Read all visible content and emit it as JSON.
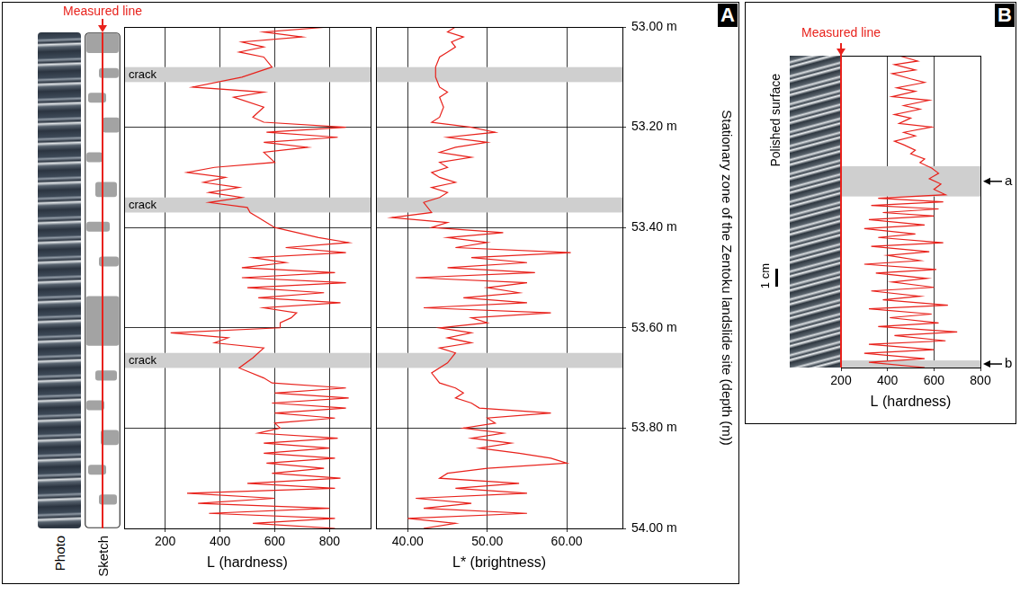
{
  "chart_data": [
    {
      "type": "line",
      "x_label": "L (hardness)",
      "xlim": [
        50,
        950
      ],
      "xticks": [
        200,
        400,
        600,
        800
      ],
      "ylim": [
        54,
        53
      ],
      "yticks": [
        53,
        53.2,
        53.4,
        53.6,
        53.8,
        54
      ],
      "grid": true,
      "tick_labels": "x",
      "series": [
        {
          "color": "#e8221c",
          "x": [
            800,
            560,
            700,
            480,
            560,
            470,
            560,
            590,
            480,
            300,
            560,
            450,
            560,
            520,
            560,
            860,
            570,
            830,
            560,
            720,
            560,
            600,
            380,
            280,
            420,
            340,
            470,
            360,
            480,
            360,
            500,
            510,
            540,
            600,
            760,
            870,
            640,
            860,
            520,
            640,
            480,
            820,
            480,
            860,
            500,
            780,
            540,
            840,
            560,
            680,
            660,
            620,
            620,
            220,
            430,
            380,
            560,
            520,
            470,
            560,
            590,
            860,
            600,
            870,
            590,
            860,
            600,
            820,
            600,
            620,
            540,
            830,
            560,
            800,
            560,
            820,
            570,
            780,
            590,
            840,
            500,
            820,
            280,
            600,
            320,
            800,
            360,
            820,
            520,
            820
          ],
          "y": [
            53.0,
            53.01,
            53.02,
            53.03,
            53.04,
            53.05,
            53.06,
            53.08,
            53.1,
            53.12,
            53.13,
            53.14,
            53.16,
            53.18,
            53.19,
            53.2,
            53.21,
            53.22,
            53.23,
            53.24,
            53.25,
            53.27,
            53.28,
            53.29,
            53.3,
            53.31,
            53.32,
            53.33,
            53.34,
            53.35,
            53.36,
            53.37,
            53.38,
            53.4,
            53.42,
            53.43,
            53.44,
            53.45,
            53.46,
            53.47,
            53.48,
            53.49,
            53.5,
            53.51,
            53.52,
            53.53,
            53.54,
            53.55,
            53.56,
            53.57,
            53.58,
            53.59,
            53.6,
            53.61,
            53.62,
            53.63,
            53.64,
            53.66,
            53.68,
            53.7,
            53.71,
            53.72,
            53.73,
            53.74,
            53.75,
            53.76,
            53.77,
            53.78,
            53.79,
            53.8,
            53.81,
            53.82,
            53.83,
            53.84,
            53.85,
            53.86,
            53.87,
            53.88,
            53.89,
            53.9,
            53.91,
            53.92,
            53.93,
            53.94,
            53.95,
            53.96,
            53.97,
            53.98,
            53.99,
            54.0
          ]
        }
      ],
      "bands": [
        {
          "from": 53.08,
          "to": 53.11,
          "label": "crack"
        },
        {
          "from": 53.34,
          "to": 53.37,
          "label": "crack"
        },
        {
          "from": 53.65,
          "to": 53.68,
          "label": "crack"
        }
      ]
    },
    {
      "type": "line",
      "x_label": "L* (brightness)",
      "xlim": [
        36,
        67
      ],
      "xticks": [
        {
          "value": 40,
          "label": "40.00"
        },
        {
          "value": 50,
          "label": "50.00"
        },
        {
          "value": 60,
          "label": "60.00"
        }
      ],
      "ylim": [
        54,
        53
      ],
      "yticks": [
        {
          "value": 53,
          "label": "53.00 m"
        },
        {
          "value": 53.2,
          "label": "53.20 m"
        },
        {
          "value": 53.4,
          "label": "53.40 m"
        },
        {
          "value": 53.6,
          "label": "53.60 m"
        },
        {
          "value": 53.8,
          "label": "53.80 m"
        },
        {
          "value": 54,
          "label": "54.00 m"
        }
      ],
      "y_label": "Stationary zone of the Zentoku landslide site (depth (m))",
      "grid": true,
      "series": [
        {
          "color": "#e8221c",
          "x": [
            46,
            45,
            47,
            45.5,
            46,
            45,
            44,
            43.5,
            43.5,
            44,
            45,
            44,
            44.5,
            44,
            43,
            48,
            51,
            45,
            50,
            46,
            44,
            48,
            44,
            45,
            43,
            44,
            46,
            43,
            45,
            44,
            42,
            43,
            38,
            45,
            43,
            52,
            45,
            50,
            46,
            60.5,
            48,
            55,
            45,
            56,
            41,
            55,
            50,
            54,
            47,
            55,
            42,
            58,
            48,
            50,
            44,
            48,
            45,
            48,
            44,
            46,
            45,
            43,
            44,
            46,
            47,
            46,
            48,
            49,
            58,
            50,
            51,
            47,
            52,
            48,
            53,
            49,
            54,
            58,
            60,
            50,
            45,
            44,
            54,
            46,
            55,
            41,
            48,
            42,
            55,
            40,
            46,
            42
          ],
          "y": [
            53.0,
            53.01,
            53.02,
            53.03,
            53.04,
            53.05,
            53.06,
            53.08,
            53.1,
            53.12,
            53.13,
            53.14,
            53.16,
            53.18,
            53.19,
            53.2,
            53.21,
            53.22,
            53.23,
            53.24,
            53.25,
            53.26,
            53.27,
            53.28,
            53.29,
            53.3,
            53.31,
            53.32,
            53.33,
            53.34,
            53.35,
            53.37,
            53.38,
            53.39,
            53.4,
            53.41,
            53.42,
            53.43,
            53.44,
            53.45,
            53.46,
            53.47,
            53.48,
            53.49,
            53.5,
            53.51,
            53.52,
            53.53,
            53.54,
            53.55,
            53.56,
            53.57,
            53.58,
            53.59,
            53.6,
            53.61,
            53.62,
            53.63,
            53.64,
            53.65,
            53.67,
            53.69,
            53.71,
            53.72,
            53.73,
            53.74,
            53.75,
            53.76,
            53.77,
            53.78,
            53.79,
            53.8,
            53.81,
            53.82,
            53.83,
            53.84,
            53.85,
            53.86,
            53.87,
            53.88,
            53.89,
            53.9,
            53.91,
            53.92,
            53.93,
            53.94,
            53.95,
            53.96,
            53.97,
            53.98,
            53.99,
            54.0
          ]
        }
      ],
      "bands": [
        {
          "from": 53.08,
          "to": 53.11
        },
        {
          "from": 53.34,
          "to": 53.37
        },
        {
          "from": 53.65,
          "to": 53.68
        }
      ]
    },
    {
      "type": "line",
      "x_label": "L (hardness)",
      "xlim": [
        200,
        800
      ],
      "xticks": [
        200,
        400,
        600,
        800
      ],
      "ylim": [
        17.5,
        0
      ],
      "grid": "x",
      "tick_labels": "x",
      "series": [
        {
          "color": "#e8221c",
          "x": [
            450,
            530,
            430,
            520,
            420,
            500,
            560,
            440,
            520,
            420,
            580,
            470,
            540,
            430,
            500,
            450,
            590,
            470,
            520,
            430,
            470,
            520,
            500,
            560,
            540,
            590,
            620,
            580,
            630,
            600,
            650,
            360,
            640,
            330,
            620,
            380,
            600,
            320,
            560,
            300,
            520,
            360,
            640,
            330,
            580,
            400,
            540,
            300,
            610,
            350,
            570,
            420,
            600,
            330,
            540,
            380,
            660,
            320,
            590,
            410,
            620,
            360,
            700,
            430,
            650,
            320,
            600,
            300,
            560,
            320,
            560
          ],
          "y": [
            0,
            0.3,
            0.5,
            0.8,
            1.0,
            1.3,
            1.5,
            1.8,
            2.0,
            2.3,
            2.5,
            2.8,
            3.0,
            3.3,
            3.5,
            3.8,
            4.0,
            4.3,
            4.5,
            4.8,
            5.0,
            5.3,
            5.5,
            5.8,
            6.0,
            6.3,
            6.6,
            6.9,
            7.2,
            7.5,
            7.8,
            8.0,
            8.2,
            8.4,
            8.6,
            8.8,
            9.0,
            9.2,
            9.5,
            9.7,
            10.0,
            10.2,
            10.5,
            10.7,
            11.0,
            11.2,
            11.5,
            11.7,
            12.0,
            12.2,
            12.5,
            12.7,
            13.0,
            13.2,
            13.5,
            13.7,
            14.0,
            14.2,
            14.5,
            14.7,
            15.0,
            15.2,
            15.5,
            15.7,
            16.0,
            16.2,
            16.5,
            16.7,
            17.0,
            17.2,
            17.5
          ]
        }
      ],
      "bands": [
        {
          "from": 6.2,
          "to": 7.9,
          "label": "a"
        },
        {
          "from": 17.1,
          "to": 17.5,
          "label": "b"
        }
      ]
    }
  ],
  "panels": [
    {
      "letter": "A",
      "photo_label": "Photo",
      "sketch_label": "Sketch",
      "measured_line": "Measured line"
    },
    {
      "letter": "B",
      "measured_line": "Measured line",
      "surface_label": "Polished surface",
      "scale_bar": {
        "value": 1,
        "label": "1 cm"
      }
    }
  ]
}
